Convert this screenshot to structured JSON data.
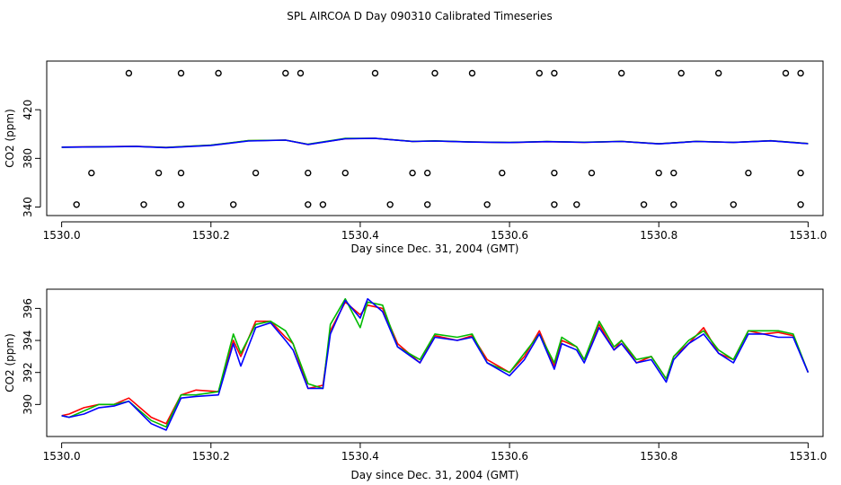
{
  "title": "SPL AIRCOA D  Day 090310  Calibrated Timeseries",
  "chart_data": [
    {
      "type": "line",
      "xlabel": "Day since Dec. 31, 2004 (GMT)",
      "ylabel": "CO2 (ppm)",
      "xlim": [
        1529.98,
        1531.02
      ],
      "ylim": [
        333,
        460
      ],
      "xticks": [
        1530.0,
        1530.2,
        1530.4,
        1530.6,
        1530.8,
        1531.0
      ],
      "xtick_labels": [
        "1530.0",
        "1530.2",
        "1530.4",
        "1530.6",
        "1530.8",
        "1531.0"
      ],
      "yticks": [
        340,
        380,
        420
      ],
      "ytick_labels": [
        "340",
        "380",
        "420"
      ],
      "series": [
        {
          "name": "series-1",
          "color": "#ff0000",
          "x": [
            1530.0,
            1530.1,
            1530.14,
            1530.2,
            1530.25,
            1530.3,
            1530.33,
            1530.38,
            1530.42,
            1530.47,
            1530.5,
            1530.55,
            1530.6,
            1530.65,
            1530.7,
            1530.75,
            1530.8,
            1530.85,
            1530.9,
            1530.95,
            1531.0
          ],
          "values": [
            389.3,
            389.9,
            389.0,
            390.8,
            394.5,
            395.0,
            391.5,
            396.2,
            396.5,
            394.0,
            394.3,
            393.5,
            393.0,
            393.8,
            393.2,
            394.0,
            392.0,
            394.0,
            393.2,
            394.5,
            392.2
          ]
        },
        {
          "name": "series-2",
          "color": "#00bb00",
          "x": [
            1530.0,
            1530.1,
            1530.14,
            1530.2,
            1530.25,
            1530.3,
            1530.33,
            1530.38,
            1530.42,
            1530.47,
            1530.5,
            1530.55,
            1530.6,
            1530.65,
            1530.7,
            1530.75,
            1530.8,
            1530.85,
            1530.9,
            1530.95,
            1531.0
          ],
          "values": [
            389.2,
            389.8,
            389.0,
            390.9,
            394.6,
            395.0,
            391.6,
            396.4,
            396.5,
            394.0,
            394.4,
            393.5,
            393.1,
            393.9,
            393.3,
            394.0,
            392.0,
            394.0,
            393.2,
            394.5,
            392.2
          ]
        },
        {
          "name": "series-3",
          "color": "#0000ff",
          "x": [
            1530.0,
            1530.1,
            1530.14,
            1530.2,
            1530.25,
            1530.3,
            1530.33,
            1530.38,
            1530.42,
            1530.47,
            1530.5,
            1530.55,
            1530.6,
            1530.65,
            1530.7,
            1530.75,
            1530.8,
            1530.85,
            1530.9,
            1530.95,
            1531.0
          ],
          "values": [
            389.2,
            389.8,
            388.8,
            390.7,
            394.3,
            395.0,
            391.4,
            396.1,
            396.4,
            393.9,
            394.3,
            393.4,
            393.0,
            393.8,
            393.2,
            393.9,
            391.9,
            393.9,
            393.1,
            394.4,
            392.1
          ]
        }
      ],
      "scatter_series": [
        {
          "name": "upper-markers",
          "marker": "open-circle",
          "x": [
            1530.09,
            1530.16,
            1530.21,
            1530.3,
            1530.32,
            1530.42,
            1530.5,
            1530.55,
            1530.64,
            1530.66,
            1530.75,
            1530.83,
            1530.88,
            1530.97,
            1530.99
          ],
          "y": [
            450,
            450,
            450,
            450,
            450,
            450,
            450,
            450,
            450,
            450,
            450,
            450,
            450,
            450,
            450
          ]
        },
        {
          "name": "middle-markers",
          "marker": "open-circle",
          "x": [
            1530.04,
            1530.13,
            1530.16,
            1530.26,
            1530.33,
            1530.38,
            1530.47,
            1530.49,
            1530.59,
            1530.66,
            1530.71,
            1530.8,
            1530.82,
            1530.92,
            1530.99
          ],
          "y": [
            368,
            368,
            368,
            368,
            368,
            368,
            368,
            368,
            368,
            368,
            368,
            368,
            368,
            368,
            368
          ]
        },
        {
          "name": "lower-markers",
          "marker": "open-circle",
          "x": [
            1530.02,
            1530.11,
            1530.16,
            1530.23,
            1530.33,
            1530.35,
            1530.44,
            1530.49,
            1530.57,
            1530.66,
            1530.69,
            1530.78,
            1530.82,
            1530.9,
            1530.99
          ],
          "y": [
            342,
            342,
            342,
            342,
            342,
            342,
            342,
            342,
            342,
            342,
            342,
            342,
            342,
            342,
            342
          ]
        }
      ]
    },
    {
      "type": "line",
      "xlabel": "Day since Dec. 31, 2004 (GMT)",
      "ylabel": "CO2 (ppm)",
      "xlim": [
        1529.98,
        1531.02
      ],
      "ylim": [
        388.0,
        397.2
      ],
      "xticks": [
        1530.0,
        1530.2,
        1530.4,
        1530.6,
        1530.8,
        1531.0
      ],
      "xtick_labels": [
        "1530.0",
        "1530.2",
        "1530.4",
        "1530.6",
        "1530.8",
        "1531.0"
      ],
      "yticks": [
        390,
        392,
        394,
        396
      ],
      "ytick_labels": [
        "390",
        "392",
        "394",
        "396"
      ],
      "series": [
        {
          "name": "series-1",
          "color": "#ff0000",
          "x": [
            1530.0,
            1530.01,
            1530.03,
            1530.05,
            1530.07,
            1530.09,
            1530.12,
            1530.14,
            1530.16,
            1530.18,
            1530.21,
            1530.23,
            1530.24,
            1530.26,
            1530.28,
            1530.3,
            1530.31,
            1530.33,
            1530.35,
            1530.36,
            1530.38,
            1530.4,
            1530.41,
            1530.43,
            1530.45,
            1530.48,
            1530.5,
            1530.53,
            1530.55,
            1530.57,
            1530.6,
            1530.62,
            1530.64,
            1530.66,
            1530.67,
            1530.69,
            1530.7,
            1530.72,
            1530.74,
            1530.75,
            1530.77,
            1530.79,
            1530.81,
            1530.82,
            1530.84,
            1530.86,
            1530.88,
            1530.9,
            1530.92,
            1530.94,
            1530.96,
            1530.98,
            1531.0
          ],
          "values": [
            389.3,
            389.4,
            389.8,
            390.0,
            390.0,
            390.4,
            389.2,
            388.8,
            390.6,
            390.9,
            390.8,
            394.0,
            393.0,
            395.2,
            395.2,
            394.2,
            393.8,
            391.0,
            391.2,
            394.6,
            396.4,
            395.6,
            396.2,
            396.0,
            393.8,
            392.6,
            394.3,
            394.0,
            394.3,
            392.8,
            392.0,
            393.0,
            394.6,
            392.4,
            394.0,
            393.6,
            392.8,
            395.0,
            393.4,
            394.0,
            392.6,
            393.0,
            391.6,
            393.0,
            393.8,
            394.8,
            393.2,
            392.8,
            394.6,
            394.4,
            394.5,
            394.3,
            392.0
          ]
        },
        {
          "name": "series-2",
          "color": "#00bb00",
          "x": [
            1530.0,
            1530.01,
            1530.03,
            1530.05,
            1530.07,
            1530.09,
            1530.12,
            1530.14,
            1530.16,
            1530.18,
            1530.21,
            1530.23,
            1530.24,
            1530.26,
            1530.28,
            1530.3,
            1530.31,
            1530.33,
            1530.35,
            1530.36,
            1530.38,
            1530.4,
            1530.41,
            1530.43,
            1530.45,
            1530.48,
            1530.5,
            1530.53,
            1530.55,
            1530.57,
            1530.6,
            1530.62,
            1530.64,
            1530.66,
            1530.67,
            1530.69,
            1530.7,
            1530.72,
            1530.74,
            1530.75,
            1530.77,
            1530.79,
            1530.81,
            1530.82,
            1530.84,
            1530.86,
            1530.88,
            1530.9,
            1530.92,
            1530.94,
            1530.96,
            1530.98,
            1531.0
          ],
          "values": [
            389.3,
            389.2,
            389.6,
            390.0,
            390.0,
            390.2,
            389.0,
            388.6,
            390.6,
            390.6,
            390.8,
            394.4,
            393.2,
            395.0,
            395.2,
            394.6,
            393.8,
            391.3,
            391.0,
            395.0,
            396.6,
            394.8,
            396.4,
            396.2,
            393.6,
            392.8,
            394.4,
            394.2,
            394.4,
            392.6,
            392.0,
            393.2,
            394.4,
            392.6,
            394.2,
            393.6,
            392.8,
            395.2,
            393.6,
            394.0,
            392.8,
            393.0,
            391.6,
            393.0,
            394.0,
            394.6,
            393.4,
            392.8,
            394.6,
            394.6,
            394.6,
            394.4,
            392.0
          ]
        },
        {
          "name": "series-3",
          "color": "#0000ff",
          "x": [
            1530.0,
            1530.01,
            1530.03,
            1530.05,
            1530.07,
            1530.09,
            1530.12,
            1530.14,
            1530.16,
            1530.18,
            1530.21,
            1530.23,
            1530.24,
            1530.26,
            1530.28,
            1530.3,
            1530.31,
            1530.33,
            1530.35,
            1530.36,
            1530.38,
            1530.4,
            1530.41,
            1530.43,
            1530.45,
            1530.48,
            1530.5,
            1530.53,
            1530.55,
            1530.57,
            1530.6,
            1530.62,
            1530.64,
            1530.66,
            1530.67,
            1530.69,
            1530.7,
            1530.72,
            1530.74,
            1530.75,
            1530.77,
            1530.79,
            1530.81,
            1530.82,
            1530.84,
            1530.86,
            1530.88,
            1530.9,
            1530.92,
            1530.94,
            1530.96,
            1530.98,
            1531.0
          ],
          "values": [
            389.3,
            389.2,
            389.4,
            389.8,
            389.9,
            390.2,
            388.8,
            388.4,
            390.4,
            390.5,
            390.6,
            393.8,
            392.4,
            394.8,
            395.1,
            394.0,
            393.4,
            391.0,
            391.0,
            394.4,
            396.5,
            395.4,
            396.6,
            395.8,
            393.6,
            392.6,
            394.2,
            394.0,
            394.2,
            392.6,
            391.8,
            392.8,
            394.4,
            392.2,
            393.8,
            393.4,
            392.6,
            394.8,
            393.4,
            393.8,
            392.6,
            392.8,
            391.4,
            392.8,
            393.8,
            394.4,
            393.2,
            392.6,
            394.4,
            394.4,
            394.2,
            394.2,
            392.0
          ]
        }
      ]
    }
  ]
}
